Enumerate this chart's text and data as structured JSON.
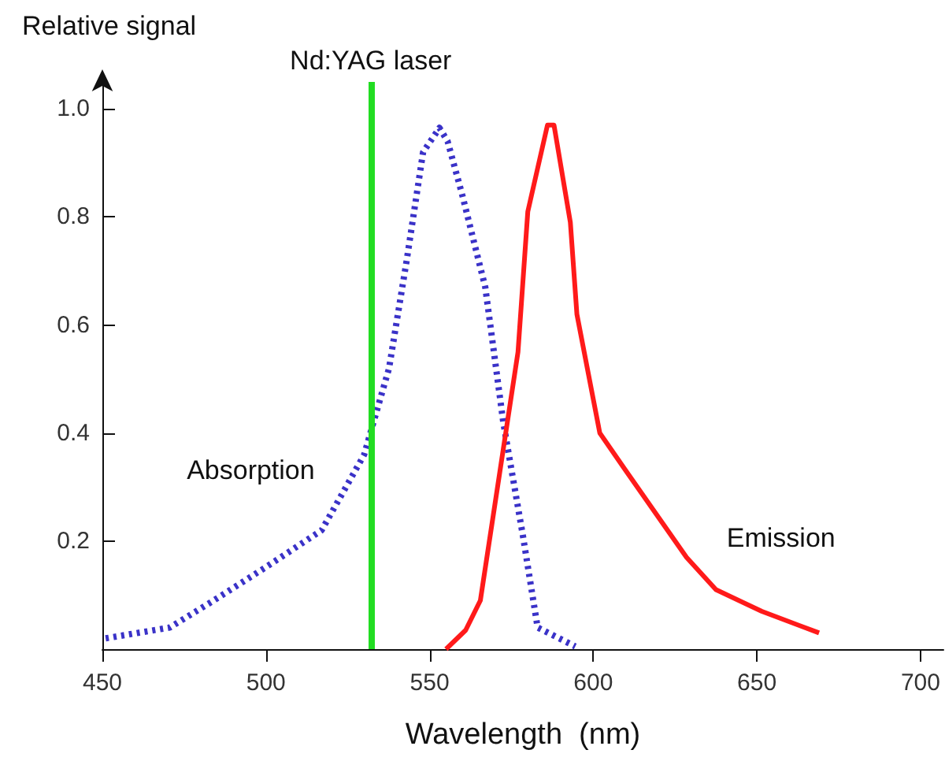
{
  "chart_data": {
    "type": "line",
    "ylabel": "Relative signal",
    "xlabel": "Wavelength  (nm)",
    "xlim": [
      450,
      707
    ],
    "xticks": [
      450,
      500,
      550,
      600,
      650,
      700
    ],
    "ylim": [
      0,
      1.05
    ],
    "yticks": [
      0.2,
      0.4,
      0.6,
      0.8,
      {
        "value": 1,
        "label": "1.0"
      }
    ],
    "grid": false,
    "legend": false,
    "marker": "none",
    "series": [
      {
        "name": "Absorption",
        "color": "#3a32c8",
        "line_style": "dotted",
        "x": [
          451,
          470.6,
          484,
          499.5,
          517,
          530,
          537.6,
          543,
          548,
          553,
          555.5,
          560,
          567,
          572.5,
          578.5,
          583,
          594.5
        ],
        "values": [
          0.02,
          0.04,
          0.09,
          0.15,
          0.22,
          0.36,
          0.52,
          0.72,
          0.92,
          0.965,
          0.94,
          0.84,
          0.67,
          0.42,
          0.21,
          0.04,
          0.005
        ]
      },
      {
        "name": "Emission",
        "color": "#ff1a1a",
        "line_style": "solid",
        "x": [
          555,
          561,
          565.5,
          577,
          580,
          586,
          588,
          593,
          595,
          602,
          610,
          628.5,
          637.5,
          651.5,
          669
        ],
        "values": [
          0,
          0.035,
          0.09,
          0.55,
          0.81,
          0.97,
          0.97,
          0.79,
          0.62,
          0.4,
          0.33,
          0.17,
          0.11,
          0.07,
          0.03
        ]
      }
    ],
    "ref_lines": [
      {
        "axis": "x",
        "value": 532,
        "label": "Nd:YAG laser",
        "color": "#22dd22",
        "line_style": "solid"
      }
    ]
  }
}
